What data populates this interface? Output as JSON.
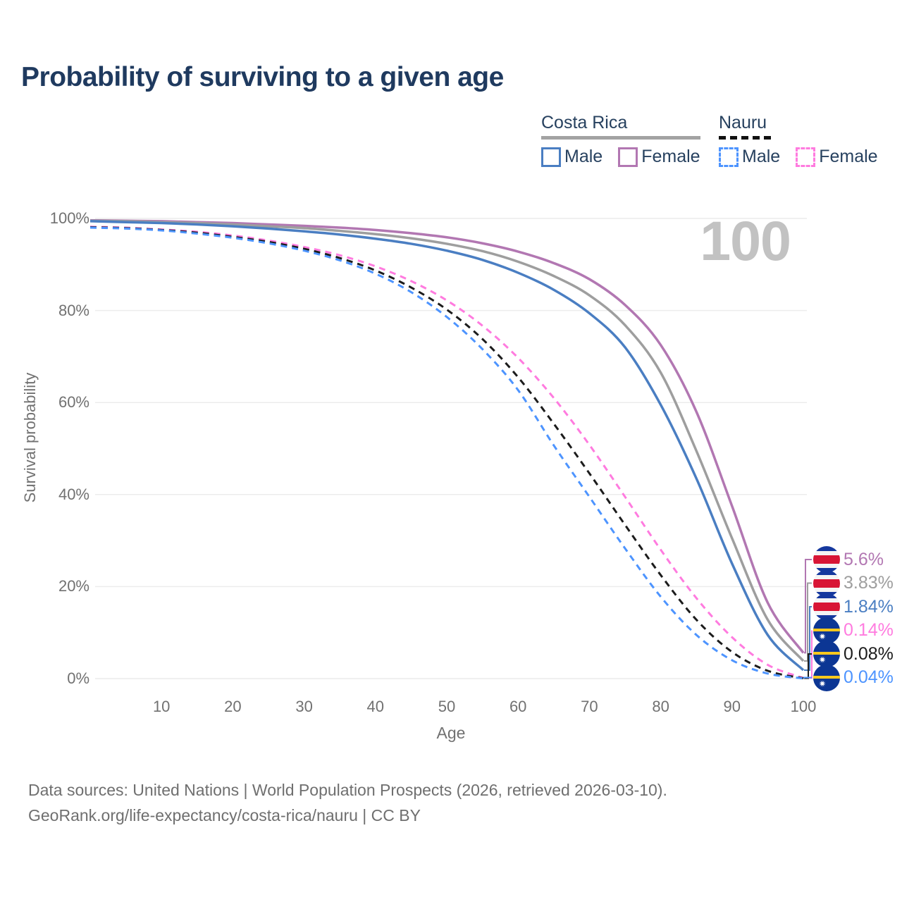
{
  "header": {
    "title": "Probability of surviving to a given age"
  },
  "legend": {
    "groups": [
      {
        "country": "Costa Rica",
        "line_style": "solid",
        "items": [
          {
            "label": "Male",
            "color": "#4a7ec2"
          },
          {
            "label": "Female",
            "color": "#b277b2"
          }
        ]
      },
      {
        "country": "Nauru",
        "line_style": "dashed",
        "items": [
          {
            "label": "Male",
            "color": "#4d94ff"
          },
          {
            "label": "Female",
            "color": "#ff7bdf"
          }
        ]
      }
    ]
  },
  "chart_data": {
    "type": "line",
    "title": "Probability of surviving to a given age",
    "xlabel": "Age",
    "ylabel": "Survival probability",
    "xlim": [
      0,
      100
    ],
    "ylim": [
      0,
      100
    ],
    "grid": "horizontal",
    "watermark": "100",
    "x_ticks": [
      10,
      20,
      30,
      40,
      50,
      60,
      70,
      80,
      90,
      100
    ],
    "y_ticks": [
      {
        "label": "100%",
        "value": 100
      },
      {
        "label": "80%",
        "value": 80
      },
      {
        "label": "60%",
        "value": 60
      },
      {
        "label": "40%",
        "value": 40
      },
      {
        "label": "20%",
        "value": 20
      },
      {
        "label": "0%",
        "value": 0
      }
    ],
    "ages": [
      0,
      5,
      10,
      15,
      20,
      25,
      30,
      35,
      40,
      45,
      50,
      55,
      60,
      65,
      70,
      75,
      80,
      85,
      90,
      95,
      100
    ],
    "series": [
      {
        "name": "Costa Rica Female",
        "country": "Costa Rica",
        "sex": "Female",
        "style": "solid",
        "color": "#b277b2",
        "flag": "costa-rica",
        "end_label": "5.6%",
        "end_value": 5.6,
        "values": [
          99.6,
          99.5,
          99.4,
          99.2,
          99.0,
          98.7,
          98.4,
          98.0,
          97.5,
          96.8,
          95.9,
          94.6,
          92.8,
          90.3,
          86.8,
          81.2,
          72.5,
          58.0,
          37.5,
          16.5,
          5.6
        ]
      },
      {
        "name": "Costa Rica Both sexes",
        "country": "Costa Rica",
        "sex": "Both",
        "style": "solid",
        "color": "#9e9e9e",
        "flag": "costa-rica",
        "end_label": "3.83%",
        "end_value": 3.83,
        "values": [
          99.5,
          99.4,
          99.2,
          99.0,
          98.7,
          98.3,
          97.9,
          97.3,
          96.6,
          95.7,
          94.5,
          92.9,
          90.6,
          87.5,
          83.3,
          76.8,
          66.5,
          49.5,
          30.5,
          12.8,
          3.83
        ]
      },
      {
        "name": "Costa Rica Male",
        "country": "Costa Rica",
        "sex": "Male",
        "style": "solid",
        "color": "#4a7ec2",
        "flag": "costa-rica",
        "end_label": "1.84%",
        "end_value": 1.84,
        "values": [
          99.4,
          99.2,
          99.0,
          98.7,
          98.3,
          97.8,
          97.2,
          96.5,
          95.6,
          94.5,
          93.0,
          91.0,
          88.2,
          84.5,
          79.4,
          72.0,
          59.5,
          43.5,
          25.0,
          9.5,
          1.84
        ]
      },
      {
        "name": "Nauru Female",
        "country": "Nauru",
        "sex": "Female",
        "style": "dashed",
        "color": "#ff7bdf",
        "flag": "nauru",
        "end_label": "0.14%",
        "end_value": 0.14,
        "values": [
          98.2,
          98.0,
          97.6,
          97.1,
          96.3,
          95.2,
          93.8,
          92.0,
          89.6,
          86.4,
          82.2,
          76.7,
          69.7,
          61.0,
          50.8,
          39.5,
          28.0,
          17.5,
          9.0,
          3.0,
          0.14
        ]
      },
      {
        "name": "Nauru Both sexes",
        "country": "Nauru",
        "sex": "Both",
        "style": "dashed",
        "color": "#1c1c1c",
        "flag": "nauru",
        "end_label": "0.08%",
        "end_value": 0.08,
        "values": [
          98.1,
          97.9,
          97.5,
          96.9,
          96.0,
          94.9,
          93.4,
          91.4,
          88.7,
          85.0,
          80.2,
          73.8,
          65.5,
          55.4,
          44.6,
          33.4,
          22.5,
          12.8,
          5.8,
          1.7,
          0.08
        ]
      },
      {
        "name": "Nauru Male",
        "country": "Nauru",
        "sex": "Male",
        "style": "dashed",
        "color": "#4d94ff",
        "flag": "nauru",
        "end_label": "0.04%",
        "end_value": 0.04,
        "values": [
          98.0,
          97.8,
          97.4,
          96.7,
          95.8,
          94.6,
          93.0,
          90.9,
          88.0,
          84.0,
          78.6,
          71.6,
          62.7,
          50.7,
          39.5,
          28.3,
          17.8,
          9.5,
          4.0,
          1.1,
          0.04
        ]
      }
    ]
  },
  "flag_colors": {
    "costa_rica_blue": "#15389e",
    "costa_rica_red": "#d81535",
    "costa_rica_white": "#f4f4f4",
    "nauru_blue": "#0c3694",
    "nauru_yellow": "#f7c81e",
    "nauru_star": "#ffffff"
  },
  "footer": {
    "line1": "Data sources: United Nations | World Population Prospects (2026, retrieved 2026-03-10).",
    "line2": "GeoRank.org/life-expectancy/costa-rica/nauru | CC BY"
  }
}
